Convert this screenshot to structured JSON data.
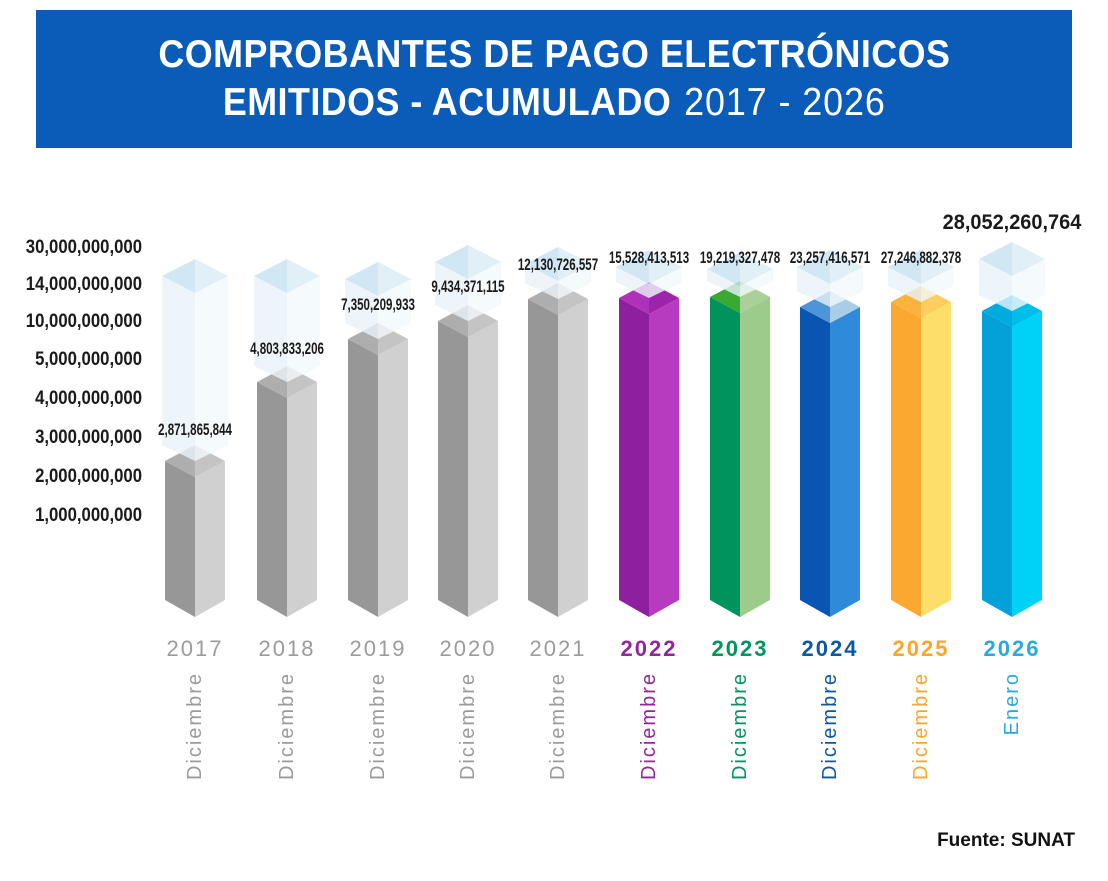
{
  "title": {
    "line1": "COMPROBANTES DE PAGO ELECTRÓNICOS",
    "line2_bold": "EMITIDOS - ACUMULADO",
    "line2_light": "2017 - 2026"
  },
  "footer": {
    "source": "Fuente: SUNAT"
  },
  "brand": {
    "banner_blue": "#0B5CB8"
  },
  "chart_data": {
    "type": "bar",
    "title": "Comprobantes de pago electrónicos emitidos - Acumulado 2017 - 2026",
    "legend_position": "none",
    "grid": false,
    "y_axis_scale": "non-linear (as printed)",
    "y_ticks": [
      "30,000,000,000",
      "14,000,000,000",
      "10,000,000,000",
      "5,000,000,000",
      "4,000,000,000",
      "3,000,000,000",
      "2,000,000,000",
      "1,000,000,000"
    ],
    "ghost_colors": {
      "capL": "#C7E1F1",
      "capR": "#DAEBF5",
      "faceL": "#E8F2F9",
      "faceR": "#F3F9FC"
    },
    "bars": [
      {
        "year": "2017",
        "month": "Diciembre",
        "value": 2871865844,
        "value_label": "2,871,865,844",
        "colors": {
          "faceL": "#989797",
          "faceR": "#D1D0D0",
          "capL": "#AFAEAE",
          "capR": "#C5C4C4",
          "text": "#9C9B9B"
        }
      },
      {
        "year": "2018",
        "month": "Diciembre",
        "value": 4803833206,
        "value_label": "4,803,833,206",
        "colors": {
          "faceL": "#989797",
          "faceR": "#D1D0D0",
          "capL": "#AFAEAE",
          "capR": "#C5C4C4",
          "text": "#9C9B9B"
        }
      },
      {
        "year": "2019",
        "month": "Diciembre",
        "value": 7350209933,
        "value_label": "7,350,209,933",
        "colors": {
          "faceL": "#989797",
          "faceR": "#D1D0D0",
          "capL": "#AFAEAE",
          "capR": "#C5C4C4",
          "text": "#9C9B9B"
        }
      },
      {
        "year": "2020",
        "month": "Diciembre",
        "value": 9434371115,
        "value_label": "9,434,371,115",
        "colors": {
          "faceL": "#989797",
          "faceR": "#D1D0D0",
          "capL": "#AFAEAE",
          "capR": "#C5C4C4",
          "text": "#9C9B9B"
        }
      },
      {
        "year": "2021",
        "month": "Diciembre",
        "value": 12130726557,
        "value_label": "12,130,726,557",
        "colors": {
          "faceL": "#989797",
          "faceR": "#D1D0D0",
          "capL": "#AFAEAE",
          "capR": "#C5C4C4",
          "text": "#9C9B9B"
        }
      },
      {
        "year": "2022",
        "month": "Diciembre",
        "value": 15528413513,
        "value_label": "15,528,413,513",
        "colors": {
          "faceL": "#8E1F9E",
          "faceR": "#B73BBE",
          "capL": "#AD32B9",
          "capR": "#9C23AA",
          "text": "#92279B"
        }
      },
      {
        "year": "2023",
        "month": "Diciembre",
        "value": 19219327478,
        "value_label": "19,219,327,478",
        "colors": {
          "faceL": "#00935E",
          "faceR": "#9CCB8C",
          "capL": "#3AA934",
          "capR": "#A8D098",
          "text": "#00945E"
        }
      },
      {
        "year": "2024",
        "month": "Diciembre",
        "value": 23257416571,
        "value_label": "23,257,416,571",
        "colors": {
          "faceL": "#0A54B2",
          "faceR": "#2F8BD9",
          "capL": "#4E95D7",
          "capR": "#A9CDE9",
          "text": "#0D57A7"
        }
      },
      {
        "year": "2025",
        "month": "Diciembre",
        "value": 27246882378,
        "value_label": "27,246,882,378",
        "colors": {
          "faceL": "#FAA82F",
          "faceR": "#FCDE6B",
          "capL": "#FBB33F",
          "capR": "#FDCE5D",
          "text": "#F9A72B"
        }
      },
      {
        "year": "2026",
        "month": "Enero",
        "value": 28052260764,
        "value_label": "28,052,260,764",
        "colors": {
          "faceL": "#04A0D8",
          "faceR": "#00D1F6",
          "capL": "#00ACDF",
          "capR": "#00BEEC",
          "text": "#2AA9E0"
        }
      }
    ]
  }
}
